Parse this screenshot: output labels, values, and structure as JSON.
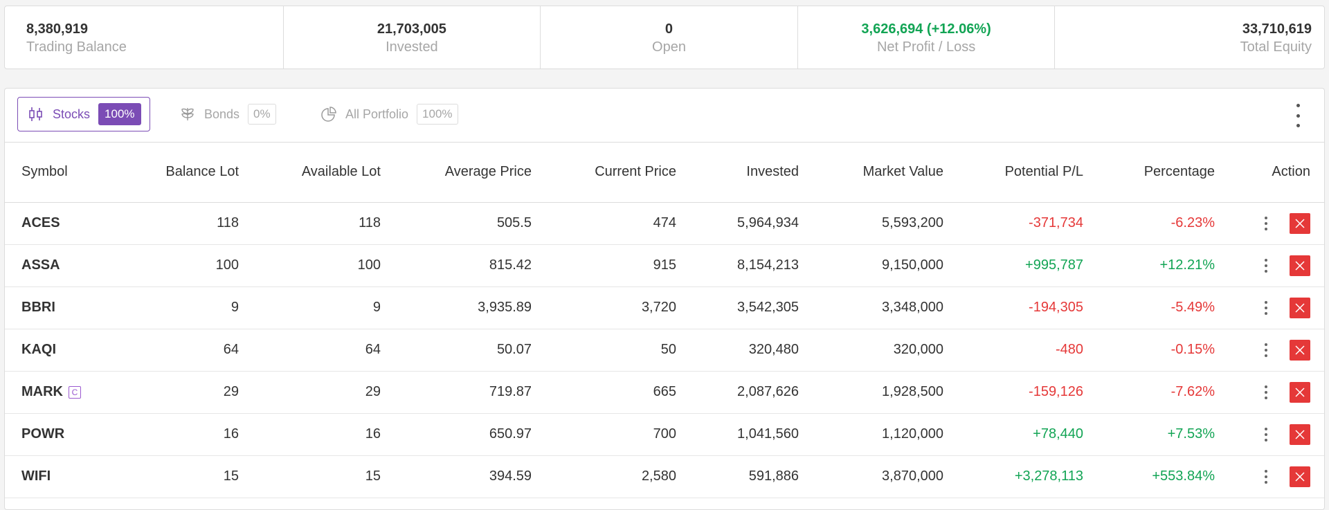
{
  "summary": {
    "trading_balance": {
      "value": "8,380,919",
      "label": "Trading Balance"
    },
    "invested": {
      "value": "21,703,005",
      "label": "Invested"
    },
    "open": {
      "value": "0",
      "label": "Open"
    },
    "net_profit": {
      "value": "3,626,694 (+12.06%)",
      "label": "Net Profit / Loss"
    },
    "total_equity": {
      "value": "33,710,619",
      "label": "Total Equity"
    }
  },
  "tabs": [
    {
      "label": "Stocks",
      "percent": "100%",
      "icon": "candlestick-icon",
      "active": true
    },
    {
      "label": "Bonds",
      "percent": "0%",
      "icon": "bond-icon",
      "active": false
    },
    {
      "label": "All Portfolio",
      "percent": "100%",
      "icon": "pie-chart-icon",
      "active": false
    }
  ],
  "table": {
    "headers": [
      "Symbol",
      "Balance Lot",
      "Available Lot",
      "Average Price",
      "Current Price",
      "Invested",
      "Market Value",
      "Potential P/L",
      "Percentage",
      "Action"
    ],
    "rows": [
      {
        "symbol": "ACES",
        "badge": "",
        "balance_lot": "118",
        "available_lot": "118",
        "avg_price": "505.5",
        "cur_price": "474",
        "invested": "5,964,934",
        "market_value": "5,593,200",
        "pl": "-371,734",
        "pct": "-6.23%",
        "trend": "neg"
      },
      {
        "symbol": "ASSA",
        "badge": "",
        "balance_lot": "100",
        "available_lot": "100",
        "avg_price": "815.42",
        "cur_price": "915",
        "invested": "8,154,213",
        "market_value": "9,150,000",
        "pl": "+995,787",
        "pct": "+12.21%",
        "trend": "pos"
      },
      {
        "symbol": "BBRI",
        "badge": "",
        "balance_lot": "9",
        "available_lot": "9",
        "avg_price": "3,935.89",
        "cur_price": "3,720",
        "invested": "3,542,305",
        "market_value": "3,348,000",
        "pl": "-194,305",
        "pct": "-5.49%",
        "trend": "neg"
      },
      {
        "symbol": "KAQI",
        "badge": "",
        "balance_lot": "64",
        "available_lot": "64",
        "avg_price": "50.07",
        "cur_price": "50",
        "invested": "320,480",
        "market_value": "320,000",
        "pl": "-480",
        "pct": "-0.15%",
        "trend": "neg"
      },
      {
        "symbol": "MARK",
        "badge": "C",
        "balance_lot": "29",
        "available_lot": "29",
        "avg_price": "719.87",
        "cur_price": "665",
        "invested": "2,087,626",
        "market_value": "1,928,500",
        "pl": "-159,126",
        "pct": "-7.62%",
        "trend": "neg"
      },
      {
        "symbol": "POWR",
        "badge": "",
        "balance_lot": "16",
        "available_lot": "16",
        "avg_price": "650.97",
        "cur_price": "700",
        "invested": "1,041,560",
        "market_value": "1,120,000",
        "pl": "+78,440",
        "pct": "+7.53%",
        "trend": "pos"
      },
      {
        "symbol": "WIFI",
        "badge": "",
        "balance_lot": "15",
        "available_lot": "15",
        "avg_price": "394.59",
        "cur_price": "2,580",
        "invested": "591,886",
        "market_value": "3,870,000",
        "pl": "+3,278,113",
        "pct": "+553.84%",
        "trend": "pos"
      }
    ]
  },
  "colors": {
    "accent": "#7b4cb5",
    "positive": "#12a454",
    "negative": "#e53838"
  }
}
